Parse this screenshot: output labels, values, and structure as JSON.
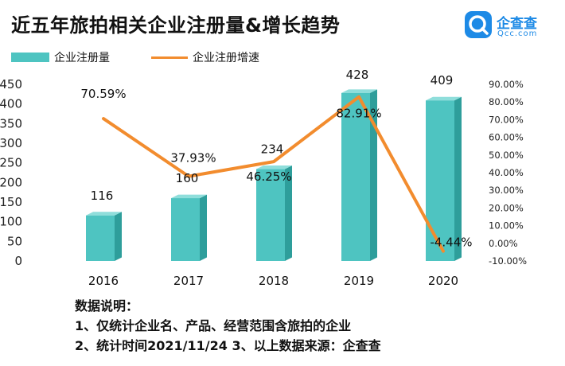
{
  "header": {
    "title": "近五年旅拍相关企业注册量&增长趋势",
    "logo_text": "企查查",
    "logo_sub": "Qcc.com"
  },
  "colors": {
    "bar": "#4ec4c1",
    "bar_side": "#2e9e9b",
    "bar_top": "#8fdedb",
    "line": "#f28c2e",
    "logo": "#1d8ae6"
  },
  "chart_data": {
    "type": "bar",
    "categories": [
      "2016",
      "2017",
      "2018",
      "2019",
      "2020"
    ],
    "series": [
      {
        "name": "企业注册量",
        "type": "bar",
        "axis": "left",
        "values": [
          116,
          160,
          234,
          428,
          409
        ],
        "labels": [
          "116",
          "160",
          "234",
          "428",
          "409"
        ]
      },
      {
        "name": "企业注册增速",
        "type": "line",
        "axis": "right",
        "values": [
          70.59,
          37.93,
          46.25,
          82.91,
          -4.44
        ],
        "labels": [
          "70.59%",
          "37.93%",
          "46.25%",
          "82.91%",
          "-4.44%"
        ]
      }
    ],
    "y_left": {
      "min": 0,
      "max": 450,
      "ticks": [
        "0",
        "50",
        "100",
        "150",
        "200",
        "250",
        "300",
        "350",
        "400",
        "450"
      ]
    },
    "y_right": {
      "min": -10,
      "max": 90,
      "ticks": [
        "-10.00%",
        "0.00%",
        "10.00%",
        "20.00%",
        "30.00%",
        "40.00%",
        "50.00%",
        "60.00%",
        "70.00%",
        "80.00%",
        "90.00%"
      ]
    },
    "grid": false,
    "legend_position": "top-left"
  },
  "notes": {
    "heading": "数据说明：",
    "line1": "1、仅统计企业名、产品、经营范围含旅拍的企业",
    "line2": "2、统计时间2021/11/24   3、以上数据来源：企查查"
  }
}
